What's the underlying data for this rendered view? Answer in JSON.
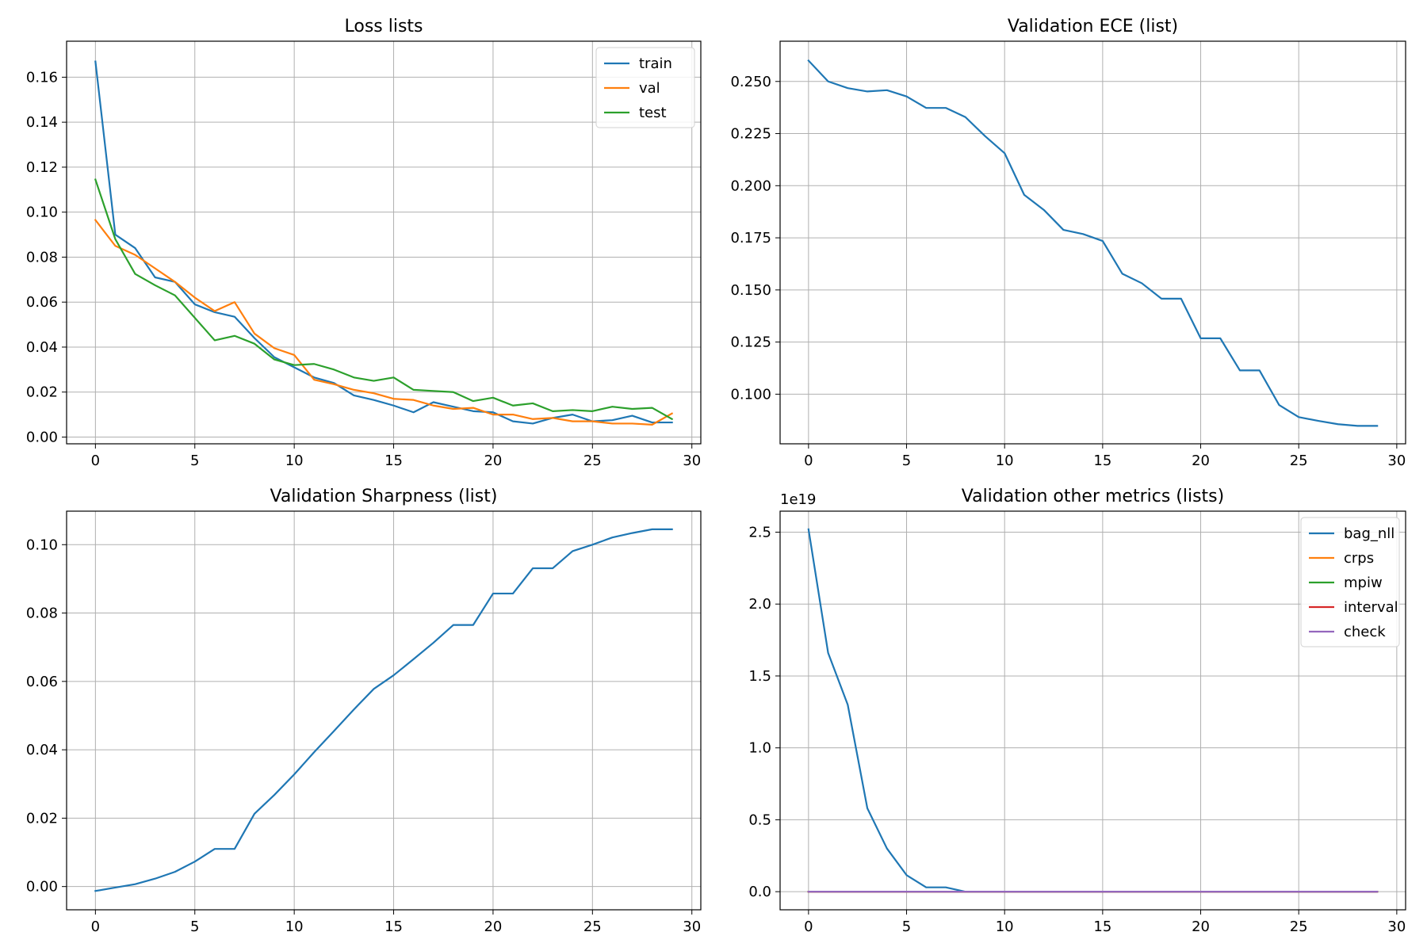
{
  "chart_data": [
    {
      "type": "line",
      "title": "Loss lists",
      "xlabel": "",
      "ylabel": "",
      "xlim": [
        -1.45,
        30.45
      ],
      "ylim": [
        -0.003,
        0.176
      ],
      "xticks": [
        0,
        5,
        10,
        15,
        20,
        25,
        30
      ],
      "yticks": [
        0.0,
        0.02,
        0.04,
        0.06,
        0.08,
        0.1,
        0.12,
        0.14,
        0.16
      ],
      "ytick_labels": [
        "0.00",
        "0.02",
        "0.04",
        "0.06",
        "0.08",
        "0.10",
        "0.12",
        "0.14",
        "0.16"
      ],
      "grid": true,
      "legend": "top-right",
      "x": [
        0,
        1,
        2,
        3,
        4,
        5,
        6,
        7,
        8,
        9,
        10,
        11,
        12,
        13,
        14,
        15,
        16,
        17,
        18,
        19,
        20,
        21,
        22,
        23,
        24,
        25,
        26,
        27,
        28,
        29
      ],
      "series": [
        {
          "name": "train",
          "color": "#1f77b4",
          "values": [
            0.167,
            0.09,
            0.084,
            0.071,
            0.069,
            0.059,
            0.0555,
            0.0535,
            0.044,
            0.0355,
            0.031,
            0.0265,
            0.024,
            0.0185,
            0.0165,
            0.014,
            0.011,
            0.0155,
            0.0135,
            0.0115,
            0.011,
            0.007,
            0.006,
            0.0085,
            0.01,
            0.007,
            0.0075,
            0.0095,
            0.0065,
            0.0065
          ]
        },
        {
          "name": "val",
          "color": "#ff7f0e",
          "values": [
            0.0965,
            0.085,
            0.081,
            0.075,
            0.069,
            0.062,
            0.056,
            0.06,
            0.046,
            0.0395,
            0.0365,
            0.0255,
            0.0235,
            0.021,
            0.0195,
            0.017,
            0.0165,
            0.014,
            0.0125,
            0.013,
            0.01,
            0.01,
            0.008,
            0.0085,
            0.007,
            0.007,
            0.006,
            0.006,
            0.0055,
            0.0105
          ]
        },
        {
          "name": "test",
          "color": "#2ca02c",
          "values": [
            0.1145,
            0.088,
            0.0725,
            0.0675,
            0.063,
            0.053,
            0.043,
            0.045,
            0.0415,
            0.0345,
            0.032,
            0.0325,
            0.03,
            0.0265,
            0.025,
            0.0265,
            0.021,
            0.0205,
            0.02,
            0.016,
            0.0175,
            0.014,
            0.015,
            0.0115,
            0.012,
            0.0115,
            0.0135,
            0.0125,
            0.013,
            0.008
          ]
        }
      ]
    },
    {
      "type": "line",
      "title": "Validation ECE (list)",
      "xlabel": "",
      "ylabel": "",
      "xlim": [
        -1.45,
        30.45
      ],
      "ylim": [
        0.0762,
        0.2693
      ],
      "xticks": [
        0,
        5,
        10,
        15,
        20,
        25,
        30
      ],
      "yticks": [
        0.1,
        0.125,
        0.15,
        0.175,
        0.2,
        0.225,
        0.25
      ],
      "ytick_labels": [
        "0.100",
        "0.125",
        "0.150",
        "0.175",
        "0.200",
        "0.225",
        "0.250"
      ],
      "grid": true,
      "legend": "none",
      "x": [
        0,
        1,
        2,
        3,
        4,
        5,
        6,
        7,
        8,
        9,
        10,
        11,
        12,
        13,
        14,
        15,
        16,
        17,
        18,
        19,
        20,
        21,
        22,
        23,
        24,
        25,
        26,
        27,
        28,
        29
      ],
      "series": [
        {
          "color": "#1f77b4",
          "values": [
            0.26,
            0.25,
            0.2468,
            0.2452,
            0.2458,
            0.2428,
            0.2373,
            0.2373,
            0.2329,
            0.2238,
            0.2156,
            0.1956,
            0.1884,
            0.1788,
            0.1768,
            0.1735,
            0.1578,
            0.1532,
            0.1458,
            0.1458,
            0.1268,
            0.1268,
            0.1114,
            0.1114,
            0.0948,
            0.089,
            0.0872,
            0.0856,
            0.0848,
            0.0848
          ]
        }
      ]
    },
    {
      "type": "line",
      "title": "Validation Sharpness (list)",
      "xlabel": "",
      "ylabel": "",
      "xlim": [
        -1.45,
        30.45
      ],
      "ylim": [
        -0.0068,
        0.1098
      ],
      "xticks": [
        0,
        5,
        10,
        15,
        20,
        25,
        30
      ],
      "yticks": [
        0.0,
        0.02,
        0.04,
        0.06,
        0.08,
        0.1
      ],
      "ytick_labels": [
        "0.00",
        "0.02",
        "0.04",
        "0.06",
        "0.08",
        "0.10"
      ],
      "grid": true,
      "legend": "none",
      "x": [
        0,
        1,
        2,
        3,
        4,
        5,
        6,
        7,
        8,
        9,
        10,
        11,
        12,
        13,
        14,
        15,
        16,
        17,
        18,
        19,
        20,
        21,
        22,
        23,
        24,
        25,
        26,
        27,
        28,
        29
      ],
      "series": [
        {
          "color": "#1f77b4",
          "values": [
            -0.0013,
            -0.0003,
            0.0007,
            0.0023,
            0.0043,
            0.0073,
            0.011,
            0.011,
            0.0213,
            0.0268,
            0.0328,
            0.0393,
            0.0455,
            0.0518,
            0.0578,
            0.0618,
            0.0665,
            0.0713,
            0.0765,
            0.0765,
            0.0857,
            0.0857,
            0.0931,
            0.0931,
            0.0981,
            0.1,
            0.1021,
            0.1034,
            0.1045,
            0.1045
          ]
        }
      ]
    },
    {
      "type": "line",
      "title": "Validation other metrics (lists)",
      "xlabel": "",
      "ylabel": "",
      "y_offset_label": "1e19",
      "xlim": [
        -1.45,
        30.45
      ],
      "ylim": [
        -0.126,
        2.646
      ],
      "xticks": [
        0,
        5,
        10,
        15,
        20,
        25,
        30
      ],
      "yticks": [
        0.0,
        0.5,
        1.0,
        1.5,
        2.0,
        2.5
      ],
      "ytick_labels": [
        "0.0",
        "0.5",
        "1.0",
        "1.5",
        "2.0",
        "2.5"
      ],
      "grid": true,
      "legend": "top-right",
      "x": [
        0,
        1,
        2,
        3,
        4,
        5,
        6,
        7,
        8,
        9,
        10,
        11,
        12,
        13,
        14,
        15,
        16,
        17,
        18,
        19,
        20,
        21,
        22,
        23,
        24,
        25,
        26,
        27,
        28,
        29
      ],
      "series": [
        {
          "name": "bag_nll",
          "color": "#1f77b4",
          "values": [
            2.52,
            1.66,
            1.3,
            0.58,
            0.3,
            0.115,
            0.03,
            0.03,
            0.0,
            0.0,
            0.0,
            0.0,
            0.0,
            0.0,
            0.0,
            0.0,
            0.0,
            0.0,
            0.0,
            0.0,
            0.0,
            0.0,
            0.0,
            0.0,
            0.0,
            0.0,
            0.0,
            0.0,
            0.0,
            0.0
          ]
        },
        {
          "name": "crps",
          "color": "#ff7f0e",
          "values": [
            0,
            0,
            0,
            0,
            0,
            0,
            0,
            0,
            0,
            0,
            0,
            0,
            0,
            0,
            0,
            0,
            0,
            0,
            0,
            0,
            0,
            0,
            0,
            0,
            0,
            0,
            0,
            0,
            0,
            0
          ]
        },
        {
          "name": "mpiw",
          "color": "#2ca02c",
          "values": [
            0,
            0,
            0,
            0,
            0,
            0,
            0,
            0,
            0,
            0,
            0,
            0,
            0,
            0,
            0,
            0,
            0,
            0,
            0,
            0,
            0,
            0,
            0,
            0,
            0,
            0,
            0,
            0,
            0,
            0
          ]
        },
        {
          "name": "interval",
          "color": "#d62728",
          "values": [
            0,
            0,
            0,
            0,
            0,
            0,
            0,
            0,
            0,
            0,
            0,
            0,
            0,
            0,
            0,
            0,
            0,
            0,
            0,
            0,
            0,
            0,
            0,
            0,
            0,
            0,
            0,
            0,
            0,
            0
          ]
        },
        {
          "name": "check",
          "color": "#9467bd",
          "values": [
            0,
            0,
            0,
            0,
            0,
            0,
            0,
            0,
            0,
            0,
            0,
            0,
            0,
            0,
            0,
            0,
            0,
            0,
            0,
            0,
            0,
            0,
            0,
            0,
            0,
            0,
            0,
            0,
            0,
            0
          ]
        }
      ]
    }
  ]
}
